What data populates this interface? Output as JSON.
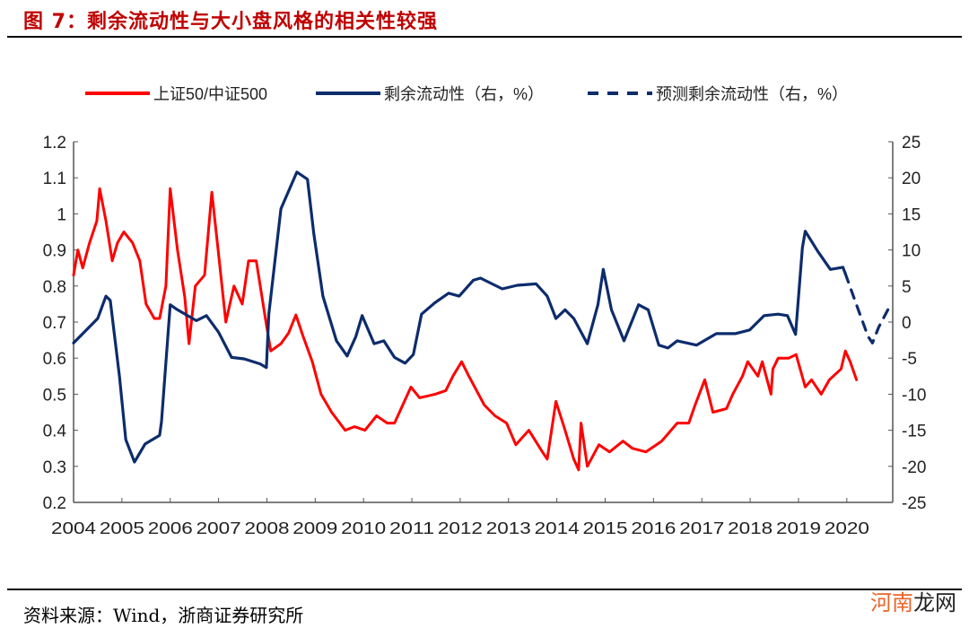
{
  "title": "图 7：剩余流动性与大小盘风格的相关性较强",
  "source": "资料来源：Wind，浙商证券研究所",
  "watermark": {
    "part1": "河南",
    "part2": "龙网"
  },
  "colors": {
    "title": "#C00000",
    "red_series": "#FF0000",
    "blue_series": "#0D2C6C"
  },
  "chart_data": {
    "type": "line",
    "title": "",
    "legend_placement": "top",
    "grid": false,
    "x_ticks": [
      "2004",
      "2005",
      "2006",
      "2007",
      "2008",
      "2009",
      "2010",
      "2011",
      "2012",
      "2013",
      "2014",
      "2015",
      "2016",
      "2017",
      "2018",
      "2019",
      "2020"
    ],
    "xlim": [
      2004,
      2020.95
    ],
    "left_axis": {
      "ylim": [
        0.2,
        1.2
      ],
      "ticks": [
        "0.2",
        "0.3",
        "0.4",
        "0.5",
        "0.6",
        "0.7",
        "0.8",
        "0.9",
        "1",
        "1.1",
        "1.2"
      ]
    },
    "right_axis": {
      "ylim": [
        -25,
        25
      ],
      "ticks": [
        "-25",
        "-20",
        "-15",
        "-10",
        "-5",
        "0",
        "5",
        "10",
        "15",
        "20",
        "25"
      ]
    },
    "series": [
      {
        "name": "上证50/中证500",
        "axis": "left",
        "style": "solid",
        "color": "#FF0000",
        "x": [
          2004.0,
          2004.09,
          2004.19,
          2004.33,
          2004.48,
          2004.54,
          2004.67,
          2004.8,
          2004.91,
          2005.04,
          2005.22,
          2005.37,
          2005.5,
          2005.67,
          2005.78,
          2005.91,
          2006.0,
          2006.15,
          2006.3,
          2006.39,
          2006.52,
          2006.71,
          2006.86,
          2006.99,
          2007.15,
          2007.32,
          2007.49,
          2007.62,
          2007.78,
          2007.97,
          2008.08,
          2008.29,
          2008.45,
          2008.6,
          2008.75,
          2008.94,
          2009.12,
          2009.34,
          2009.62,
          2009.81,
          2010.03,
          2010.27,
          2010.49,
          2010.64,
          2010.98,
          2011.16,
          2011.48,
          2011.7,
          2011.85,
          2012.03,
          2012.18,
          2012.5,
          2012.72,
          2012.96,
          2013.15,
          2013.42,
          2013.7,
          2013.8,
          2013.98,
          2014.17,
          2014.35,
          2014.45,
          2014.5,
          2014.63,
          2014.87,
          2015.09,
          2015.37,
          2015.56,
          2015.84,
          2016.17,
          2016.49,
          2016.73,
          2016.86,
          2017.06,
          2017.23,
          2017.51,
          2017.64,
          2017.84,
          2017.95,
          2018.16,
          2018.25,
          2018.43,
          2018.47,
          2018.58,
          2018.8,
          2018.95,
          2019.14,
          2019.27,
          2019.47,
          2019.64,
          2019.88,
          2019.97,
          2020.07,
          2020.2
        ],
        "y": [
          0.83,
          0.9,
          0.85,
          0.92,
          0.98,
          1.07,
          0.98,
          0.87,
          0.92,
          0.95,
          0.92,
          0.87,
          0.75,
          0.71,
          0.71,
          0.8,
          1.07,
          0.9,
          0.77,
          0.64,
          0.8,
          0.83,
          1.06,
          0.9,
          0.7,
          0.8,
          0.75,
          0.87,
          0.87,
          0.71,
          0.62,
          0.64,
          0.67,
          0.72,
          0.66,
          0.59,
          0.5,
          0.45,
          0.4,
          0.41,
          0.4,
          0.44,
          0.42,
          0.42,
          0.52,
          0.49,
          0.5,
          0.51,
          0.55,
          0.59,
          0.55,
          0.47,
          0.44,
          0.42,
          0.36,
          0.4,
          0.34,
          0.32,
          0.48,
          0.4,
          0.32,
          0.29,
          0.42,
          0.3,
          0.36,
          0.34,
          0.37,
          0.35,
          0.34,
          0.37,
          0.42,
          0.42,
          0.47,
          0.54,
          0.45,
          0.46,
          0.5,
          0.55,
          0.59,
          0.55,
          0.59,
          0.5,
          0.57,
          0.6,
          0.6,
          0.61,
          0.52,
          0.54,
          0.5,
          0.54,
          0.57,
          0.62,
          0.59,
          0.54
        ]
      },
      {
        "name": "剩余流动性（右，%）",
        "axis": "right",
        "style": "solid",
        "color": "#0D2C6C",
        "x": [
          2004.0,
          2004.5,
          2004.67,
          2004.76,
          2004.95,
          2005.08,
          2005.26,
          2005.48,
          2005.78,
          2005.82,
          2006.0,
          2006.15,
          2006.54,
          2006.75,
          2007.0,
          2007.27,
          2007.53,
          2007.86,
          2007.99,
          2008.04,
          2008.29,
          2008.62,
          2008.84,
          2008.97,
          2009.16,
          2009.44,
          2009.66,
          2009.84,
          2009.97,
          2010.22,
          2010.42,
          2010.64,
          2010.86,
          2011.03,
          2011.2,
          2011.48,
          2011.76,
          2011.98,
          2012.27,
          2012.42,
          2012.87,
          2013.18,
          2013.57,
          2013.8,
          2013.98,
          2014.17,
          2014.35,
          2014.63,
          2014.85,
          2014.96,
          2015.13,
          2015.39,
          2015.69,
          2015.89,
          2016.11,
          2016.3,
          2016.49,
          2016.89,
          2017.3,
          2017.69,
          2017.99,
          2018.29,
          2018.58,
          2018.77,
          2018.94,
          2019.08,
          2019.14,
          2019.4,
          2019.66,
          2019.92,
          2019.97
        ],
        "y": [
          -2.9,
          0.5,
          3.6,
          3.0,
          -7.6,
          -16.3,
          -19.4,
          -16.9,
          -15.7,
          -13.8,
          2.4,
          1.7,
          0.2,
          0.9,
          -1.4,
          -4.9,
          -5.1,
          -5.8,
          -6.3,
          1.1,
          15.7,
          20.8,
          19.8,
          12.3,
          3.6,
          -2.6,
          -4.7,
          -2.0,
          0.9,
          -3.0,
          -2.6,
          -4.9,
          -5.7,
          -4.5,
          1.1,
          2.7,
          4.0,
          3.6,
          5.8,
          6.1,
          4.6,
          5.1,
          5.3,
          3.6,
          0.5,
          1.7,
          0.5,
          -3.0,
          2.4,
          7.3,
          1.7,
          -2.6,
          2.4,
          1.7,
          -3.2,
          -3.6,
          -2.6,
          -3.2,
          -1.6,
          -1.6,
          -1.1,
          0.9,
          1.1,
          0.9,
          -1.7,
          10.3,
          12.6,
          9.8,
          7.3,
          7.6,
          6.7
        ]
      },
      {
        "name": "预测剩余流动性（右，%）",
        "axis": "right",
        "style": "dashed",
        "color": "#0D2C6C",
        "x": [
          2019.97,
          2020.2,
          2020.44,
          2020.53,
          2020.66,
          2020.85,
          2020.94
        ],
        "y": [
          6.7,
          2.4,
          -2.0,
          -2.9,
          -0.7,
          1.7,
          2.6
        ]
      }
    ]
  }
}
